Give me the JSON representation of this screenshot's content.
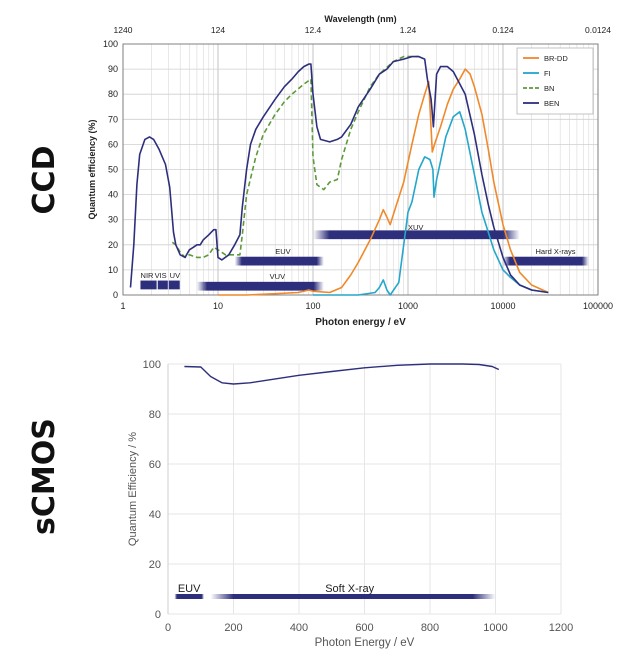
{
  "panels": {
    "top_label": "CCD",
    "bottom_label": "sCMOS"
  },
  "chart_data": [
    {
      "type": "line",
      "panel": "CCD",
      "xlabel": "Photon energy / eV",
      "x_scale": "log",
      "xlim": [
        1,
        100000
      ],
      "x_ticks": [
        1,
        10,
        100,
        1000,
        10000,
        100000
      ],
      "x_tick_labels": [
        "1",
        "10",
        "100",
        "1000",
        "10000",
        "100000"
      ],
      "top_axis_label": "Wavelength (nm)",
      "top_ticks": [
        {
          "energy": 1,
          "label": "1240"
        },
        {
          "energy": 10,
          "label": "124"
        },
        {
          "energy": 100,
          "label": "12.4"
        },
        {
          "energy": 1000,
          "label": "1.24"
        },
        {
          "energy": 10000,
          "label": "0.124"
        },
        {
          "energy": 100000,
          "label": "0.0124"
        }
      ],
      "ylabel": "Quantum efficiency (%)",
      "ylim": [
        0,
        100
      ],
      "y_ticks": [
        0,
        10,
        20,
        30,
        40,
        50,
        60,
        70,
        80,
        90,
        100
      ],
      "grid": true,
      "legend_position": "top-right",
      "series": [
        {
          "name": "BR-DD",
          "color": "#f0892a",
          "dash": "solid",
          "points": [
            [
              10,
              0
            ],
            [
              20,
              0
            ],
            [
              40,
              0.5
            ],
            [
              70,
              1
            ],
            [
              90,
              2
            ],
            [
              100,
              1.5
            ],
            [
              150,
              1
            ],
            [
              200,
              3
            ],
            [
              250,
              8
            ],
            [
              300,
              13
            ],
            [
              400,
              22
            ],
            [
              500,
              30
            ],
            [
              550,
              34
            ],
            [
              600,
              31
            ],
            [
              650,
              28
            ],
            [
              700,
              32
            ],
            [
              900,
              45
            ],
            [
              1100,
              60
            ],
            [
              1300,
              72
            ],
            [
              1500,
              80
            ],
            [
              1650,
              85
            ],
            [
              1800,
              57
            ],
            [
              1900,
              60
            ],
            [
              2200,
              67
            ],
            [
              2600,
              76
            ],
            [
              3000,
              82
            ],
            [
              3500,
              86
            ],
            [
              4000,
              90
            ],
            [
              4500,
              88
            ],
            [
              5000,
              83
            ],
            [
              6000,
              72
            ],
            [
              7000,
              58
            ],
            [
              8000,
              45
            ],
            [
              10000,
              28
            ],
            [
              12000,
              18
            ],
            [
              15000,
              9
            ],
            [
              20000,
              4
            ],
            [
              30000,
              1
            ]
          ]
        },
        {
          "name": "FI",
          "color": "#25a6cb",
          "dash": "solid",
          "points": [
            [
              100,
              0
            ],
            [
              300,
              0
            ],
            [
              450,
              1
            ],
            [
              500,
              3
            ],
            [
              550,
              6
            ],
            [
              600,
              2
            ],
            [
              650,
              0
            ],
            [
              800,
              5
            ],
            [
              900,
              20
            ],
            [
              1000,
              33
            ],
            [
              1100,
              37
            ],
            [
              1300,
              50
            ],
            [
              1500,
              55
            ],
            [
              1700,
              54
            ],
            [
              1830,
              50
            ],
            [
              1880,
              39
            ],
            [
              2000,
              46
            ],
            [
              2500,
              63
            ],
            [
              3000,
              71
            ],
            [
              3500,
              73
            ],
            [
              4000,
              66
            ],
            [
              5000,
              48
            ],
            [
              6000,
              33
            ],
            [
              7000,
              25
            ],
            [
              8000,
              18
            ],
            [
              10000,
              10
            ],
            [
              12000,
              7
            ],
            [
              15000,
              4
            ],
            [
              20000,
              2
            ],
            [
              30000,
              1
            ]
          ]
        },
        {
          "name": "BN",
          "color": "#5c9a39",
          "dash": "dashed",
          "points": [
            [
              3.3,
              21
            ],
            [
              3.6,
              20
            ],
            [
              4,
              17
            ],
            [
              4.5,
              15
            ],
            [
              5,
              16
            ],
            [
              6,
              15
            ],
            [
              7,
              15
            ],
            [
              8,
              16
            ],
            [
              9,
              19
            ],
            [
              10,
              18
            ],
            [
              12,
              16
            ],
            [
              15,
              16
            ],
            [
              17,
              16
            ],
            [
              18,
              24
            ],
            [
              20,
              40
            ],
            [
              25,
              55
            ],
            [
              30,
              64
            ],
            [
              40,
              72
            ],
            [
              50,
              77
            ],
            [
              60,
              80
            ],
            [
              80,
              84
            ],
            [
              95,
              86
            ],
            [
              100,
              55
            ],
            [
              110,
              44
            ],
            [
              130,
              42
            ],
            [
              150,
              45
            ],
            [
              180,
              46
            ],
            [
              200,
              54
            ],
            [
              250,
              66
            ],
            [
              300,
              73
            ],
            [
              400,
              83
            ],
            [
              500,
              88
            ],
            [
              700,
              93
            ],
            [
              900,
              95
            ],
            [
              1100,
              95
            ],
            [
              1300,
              95
            ]
          ]
        },
        {
          "name": "BEN",
          "color": "#2e2f7c",
          "dash": "solid",
          "points": [
            [
              1.2,
              3
            ],
            [
              1.3,
              20
            ],
            [
              1.4,
              44
            ],
            [
              1.5,
              56
            ],
            [
              1.7,
              62
            ],
            [
              1.9,
              63
            ],
            [
              2.1,
              62
            ],
            [
              2.4,
              58
            ],
            [
              2.8,
              52
            ],
            [
              3.1,
              43
            ],
            [
              3.4,
              25
            ],
            [
              3.6,
              20
            ],
            [
              4,
              16
            ],
            [
              4.5,
              15
            ],
            [
              5,
              18
            ],
            [
              5.5,
              19
            ],
            [
              6,
              20
            ],
            [
              6.5,
              20
            ],
            [
              7,
              22
            ],
            [
              8,
              24
            ],
            [
              9,
              26
            ],
            [
              9.5,
              26
            ],
            [
              10,
              15
            ],
            [
              11,
              14
            ],
            [
              13,
              16
            ],
            [
              15,
              20
            ],
            [
              17,
              24
            ],
            [
              18,
              35
            ],
            [
              20,
              50
            ],
            [
              22,
              60
            ],
            [
              25,
              66
            ],
            [
              30,
              71
            ],
            [
              40,
              78
            ],
            [
              50,
              83
            ],
            [
              60,
              86
            ],
            [
              70,
              89
            ],
            [
              80,
              91
            ],
            [
              90,
              92
            ],
            [
              95,
              92
            ],
            [
              100,
              80
            ],
            [
              110,
              67
            ],
            [
              120,
              62
            ],
            [
              150,
              61
            ],
            [
              180,
              62
            ],
            [
              200,
              63
            ],
            [
              250,
              68
            ],
            [
              300,
              75
            ],
            [
              400,
              82
            ],
            [
              500,
              88
            ],
            [
              600,
              90
            ],
            [
              700,
              93
            ],
            [
              900,
              94
            ],
            [
              1100,
              95
            ],
            [
              1300,
              95
            ],
            [
              1500,
              94
            ],
            [
              1600,
              86
            ],
            [
              1750,
              78
            ],
            [
              1850,
              67
            ],
            [
              2000,
              88
            ],
            [
              2200,
              91
            ],
            [
              2600,
              91
            ],
            [
              3000,
              89
            ],
            [
              4000,
              80
            ],
            [
              5000,
              64
            ],
            [
              6000,
              48
            ],
            [
              7000,
              36
            ],
            [
              8000,
              27
            ],
            [
              10000,
              15
            ],
            [
              12000,
              8
            ],
            [
              15000,
              4
            ],
            [
              20000,
              2
            ],
            [
              30000,
              1
            ]
          ]
        }
      ],
      "bands": [
        {
          "label": "NIR",
          "from": 1.5,
          "to": 2.3,
          "y": 4,
          "thickness": 3.5,
          "label_y": 8,
          "label_at": 1.53
        },
        {
          "label": "VIS",
          "from": 2.3,
          "to": 3.0,
          "y": 4,
          "thickness": 3.5,
          "label_y": 8,
          "label_at": 2.15
        },
        {
          "label": "UV",
          "from": 3.0,
          "to": 4.0,
          "y": 4,
          "thickness": 3.5,
          "label_y": 8,
          "label_at": 3.1
        },
        {
          "label": "VUV",
          "from": 6,
          "to": 130,
          "y": 3.5,
          "thickness": 3.5,
          "label_y": 7.5,
          "label_at": 35
        },
        {
          "label": "EUV",
          "from": 15,
          "to": 130,
          "y": 13.5,
          "thickness": 3.5,
          "label_y": 17.5,
          "label_at": 40
        },
        {
          "label": "XUV",
          "from": 100,
          "to": 15000,
          "y": 24,
          "thickness": 3.5,
          "label_y": 27,
          "label_at": 1000
        },
        {
          "label": "Hard X-rays",
          "from": 10000,
          "to": 80000,
          "y": 13.5,
          "thickness": 3.5,
          "label_y": 17.5,
          "label_at": 22000
        }
      ]
    },
    {
      "type": "line",
      "panel": "sCMOS",
      "xlabel": "Photon Energy / eV",
      "ylabel": "Quantum Efficiency / %",
      "xlim": [
        0,
        1200
      ],
      "ylim": [
        0,
        100
      ],
      "x_ticks": [
        0,
        200,
        400,
        600,
        800,
        1000,
        1200
      ],
      "y_ticks": [
        0,
        20,
        40,
        60,
        80,
        100
      ],
      "grid": true,
      "series": [
        {
          "color": "#2e2f7c",
          "points": [
            [
              50,
              99
            ],
            [
              100,
              98.8
            ],
            [
              130,
              95
            ],
            [
              165,
              92.5
            ],
            [
              200,
              92
            ],
            [
              250,
              92.5
            ],
            [
              300,
              93.5
            ],
            [
              400,
              95.5
            ],
            [
              500,
              97
            ],
            [
              600,
              98.5
            ],
            [
              700,
              99.5
            ],
            [
              800,
              100
            ],
            [
              900,
              100
            ],
            [
              950,
              99.8
            ],
            [
              990,
              99
            ],
            [
              1010,
              97.8
            ]
          ]
        }
      ],
      "bands": [
        {
          "label": "EUV",
          "from": 20,
          "to": 110,
          "y": 7,
          "thickness": 2,
          "label_y": 10,
          "label_at": 30
        },
        {
          "label": "Soft X-ray",
          "from": 130,
          "to": 1000,
          "y": 7,
          "thickness": 2,
          "label_y": 10,
          "label_at": 480
        }
      ]
    }
  ]
}
